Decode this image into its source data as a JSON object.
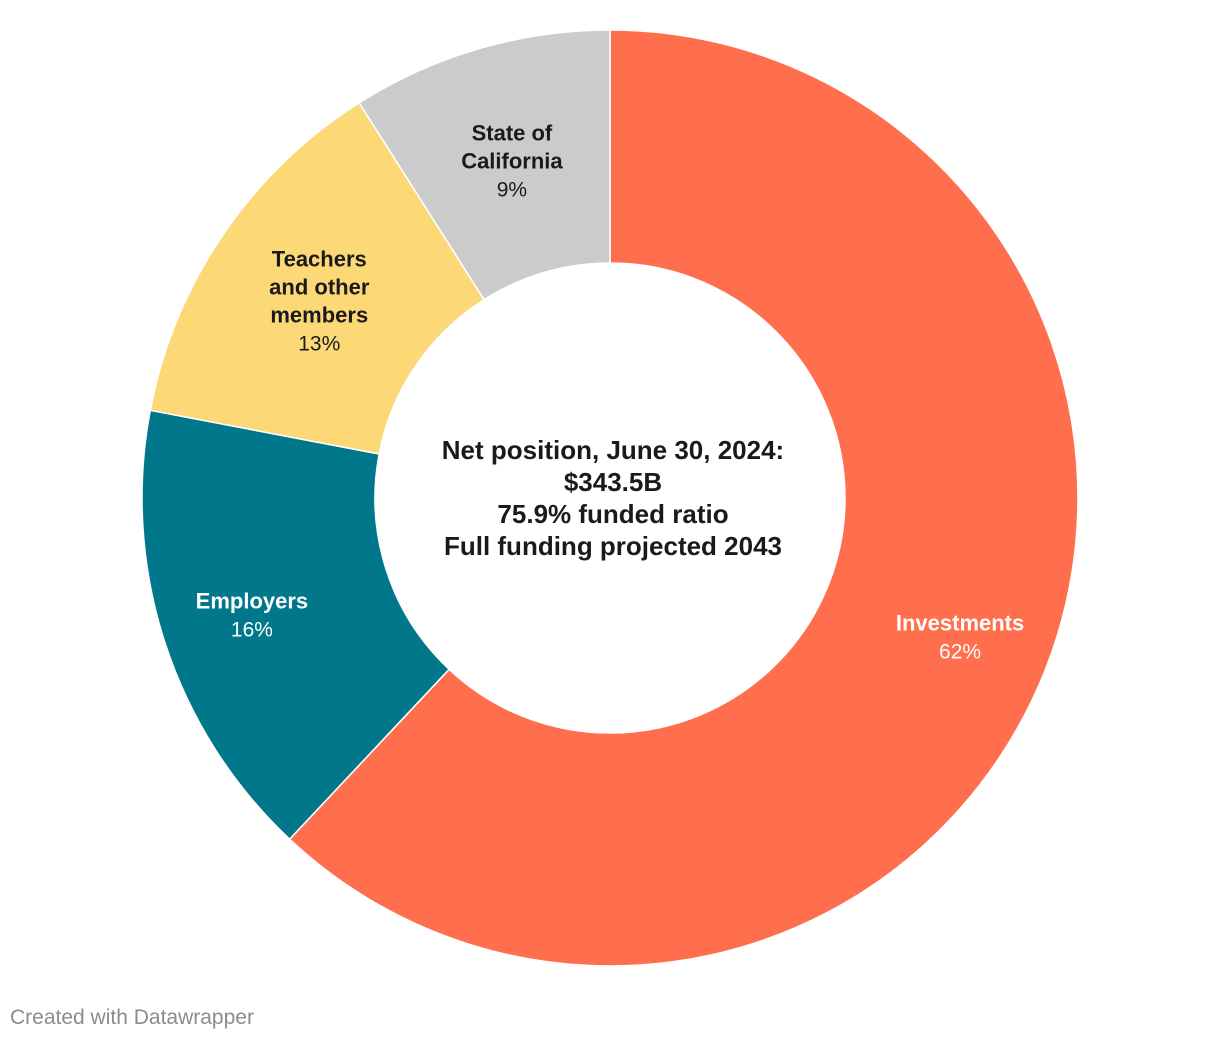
{
  "chart_data": {
    "type": "pie",
    "variant": "donut",
    "slices": [
      {
        "label": [
          "Investments"
        ],
        "value": 62,
        "display": "62%",
        "color": "#ff6f4d",
        "text_color": "#ffffff"
      },
      {
        "label": [
          "Employers"
        ],
        "value": 16,
        "display": "16%",
        "color": "#00778b",
        "text_color": "#ffffff"
      },
      {
        "label": [
          "Teachers",
          "and other",
          "members"
        ],
        "value": 13,
        "display": "13%",
        "color": "#fcd876",
        "text_color": "#1a1a1a"
      },
      {
        "label": [
          "State of",
          "California"
        ],
        "value": 9,
        "display": "9%",
        "color": "#cbcbcb",
        "text_color": "#1a1a1a"
      }
    ],
    "center_text": [
      "Net position, June 30, 2024:",
      "$343.5B",
      "75.9% funded ratio",
      "Full funding projected 2043"
    ],
    "start": "top",
    "direction": "clockwise",
    "legend": "none"
  },
  "footer": {
    "credit": "Created with Datawrapper"
  }
}
